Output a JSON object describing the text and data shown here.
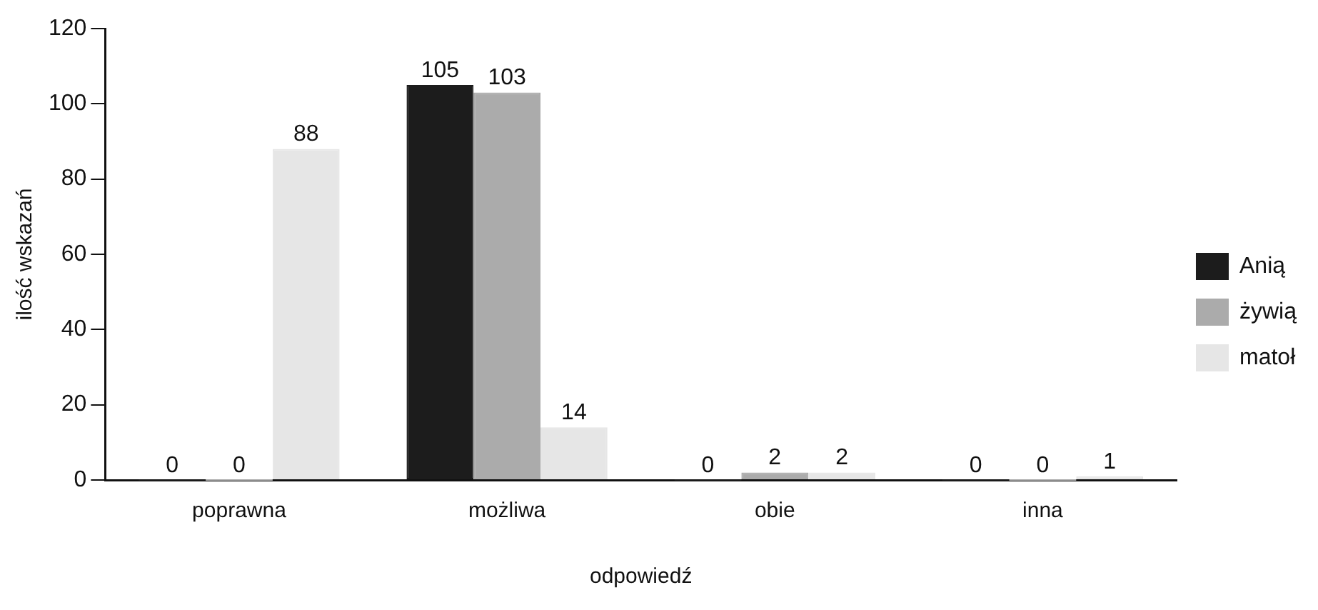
{
  "chart_data": {
    "type": "bar",
    "xlabel": "odpowiedź",
    "ylabel": "ilość wskazań",
    "categories": [
      "poprawna",
      "możliwa",
      "obie",
      "inna"
    ],
    "series": [
      {
        "name": "Anią",
        "color": "#1c1c1c",
        "values": [
          0,
          105,
          0,
          0
        ]
      },
      {
        "name": "żywią",
        "color": "#ababab",
        "values": [
          0,
          103,
          2,
          0
        ]
      },
      {
        "name": "matoł",
        "color": "#e6e6e6",
        "values": [
          88,
          14,
          2,
          1
        ]
      }
    ],
    "ylim": [
      0,
      120
    ],
    "yticks": [
      0,
      20,
      40,
      60,
      80,
      100,
      120
    ],
    "grid": false,
    "legend": "right",
    "data_labels": true
  }
}
